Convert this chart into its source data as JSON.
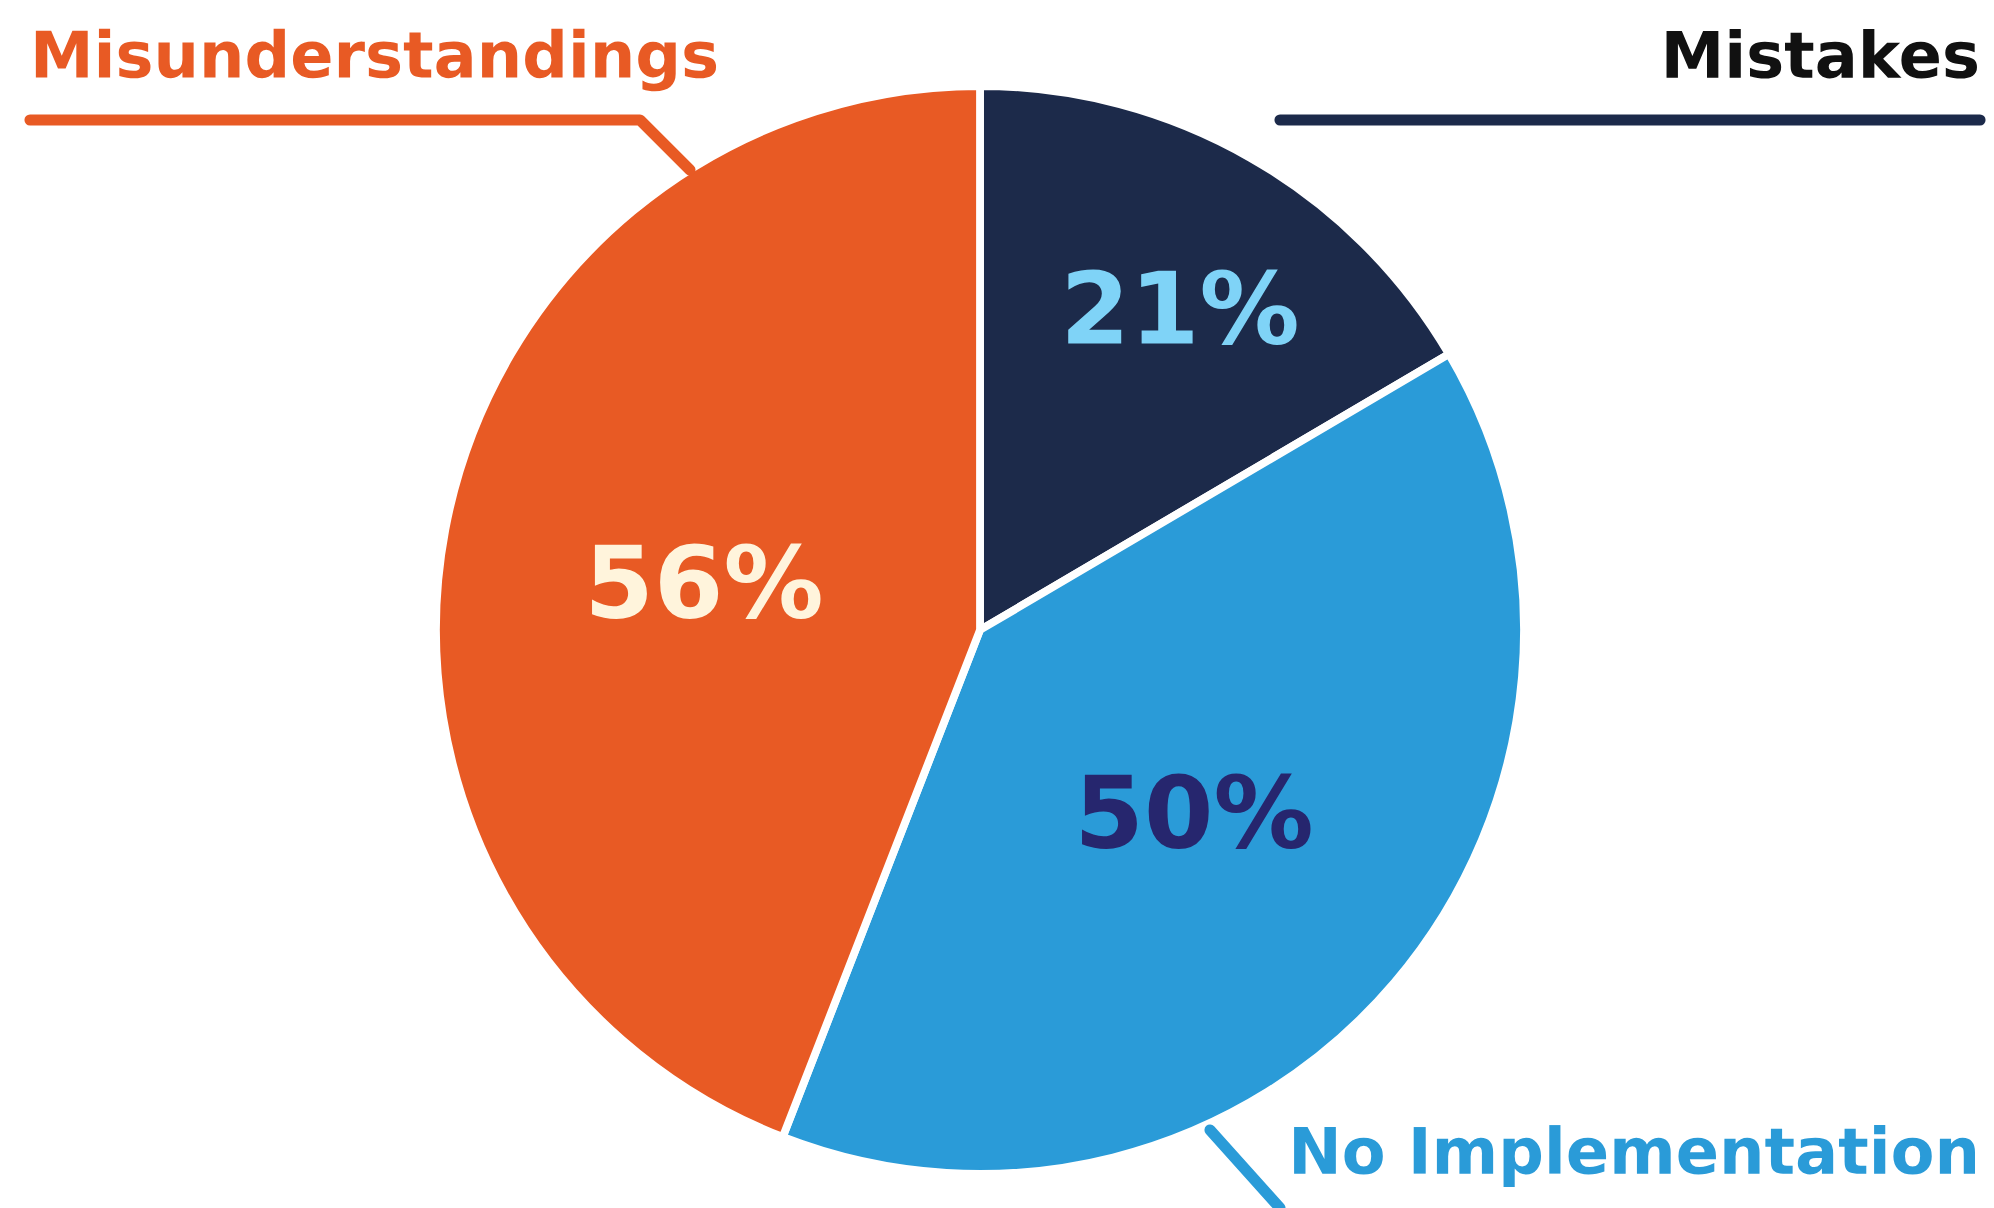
{
  "chart_data": {
    "type": "pie",
    "categories": [
      "Mistakes",
      "No Implementation",
      "Misunderstandings"
    ],
    "values": [
      21,
      50,
      56
    ],
    "colors": [
      "#1c2a4a",
      "#2a9bd8",
      "#e85a24"
    ],
    "value_labels": [
      "21%",
      "50%",
      "56%"
    ],
    "legend": false
  }
}
